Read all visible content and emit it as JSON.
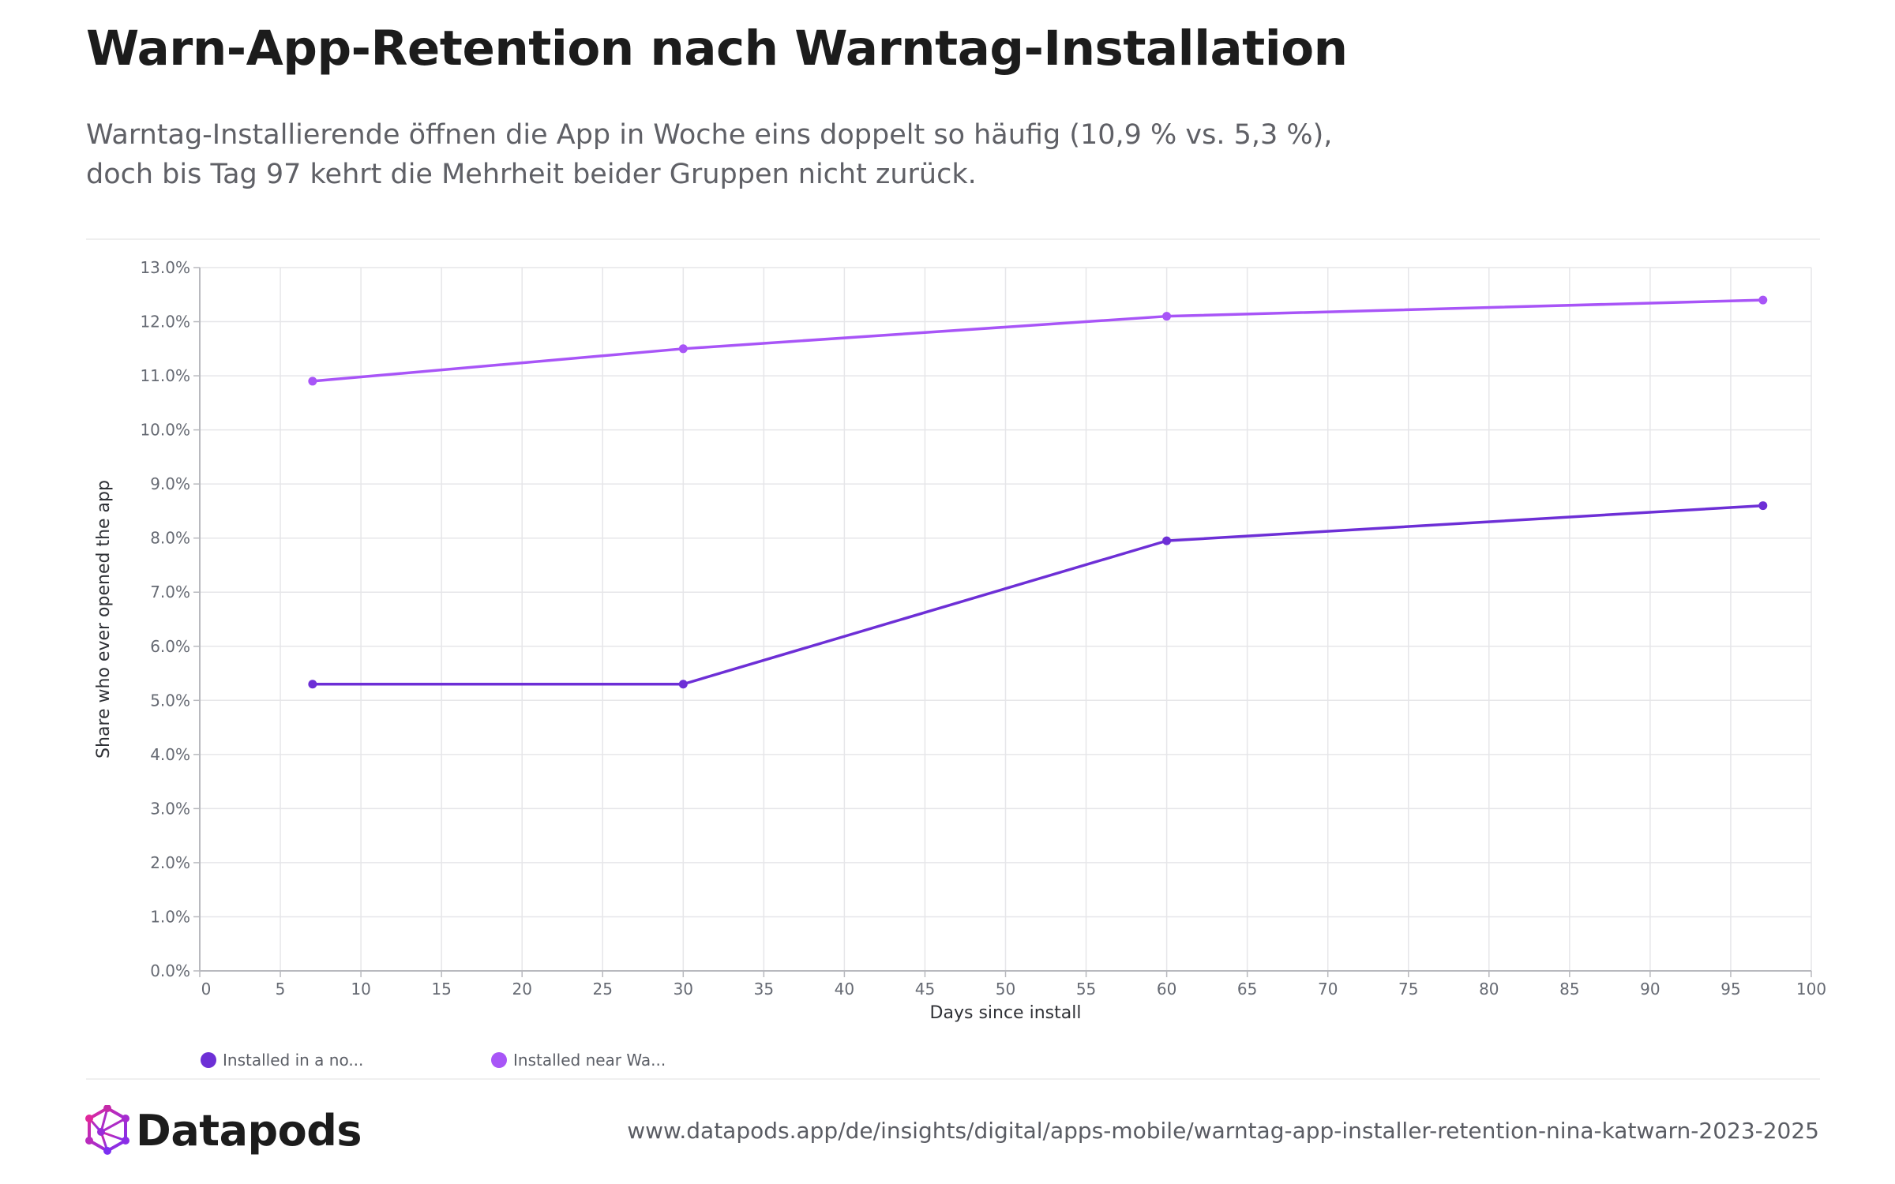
{
  "header": {
    "title": "Warn-App-Retention nach Warntag-Installation",
    "subtitle_line1": "Warntag-Installierende öffnen die App in Woche eins doppelt so häufig (10,9 % vs. 5,3 %),",
    "subtitle_line2": "doch bis Tag 97 kehrt die Mehrheit beider Gruppen nicht zurück."
  },
  "chart_data": {
    "type": "line",
    "xlabel": "Days since install",
    "ylabel": "Share who ever opened the app",
    "xlim": [
      0,
      100
    ],
    "ylim": [
      0,
      13
    ],
    "x_ticks": [
      0,
      5,
      10,
      15,
      20,
      25,
      30,
      35,
      40,
      45,
      50,
      55,
      60,
      65,
      70,
      75,
      80,
      85,
      90,
      95,
      100
    ],
    "y_ticks": [
      0,
      1,
      2,
      3,
      4,
      5,
      6,
      7,
      8,
      9,
      10,
      11,
      12,
      13
    ],
    "y_tick_labels": [
      "0.0%",
      "1.0%",
      "2.0%",
      "3.0%",
      "4.0%",
      "5.0%",
      "6.0%",
      "7.0%",
      "8.0%",
      "9.0%",
      "10.0%",
      "11.0%",
      "12.0%",
      "13.0%"
    ],
    "grid": true,
    "legend_position": "bottom-left",
    "series": [
      {
        "name": "Installed in a no...",
        "color": "#6d2fd6",
        "x": [
          7,
          30,
          60,
          97
        ],
        "y": [
          5.3,
          5.3,
          7.95,
          8.6
        ]
      },
      {
        "name": "Installed near Wa...",
        "color": "#a855f7",
        "x": [
          7,
          30,
          60,
          97
        ],
        "y": [
          10.9,
          11.5,
          12.1,
          12.4
        ]
      }
    ]
  },
  "footer": {
    "brand": "Datapods",
    "source_url": "www.datapods.app/de/insights/digital/apps-mobile/warntag-app-installer-retention-nina-katwarn-2023-2025"
  }
}
